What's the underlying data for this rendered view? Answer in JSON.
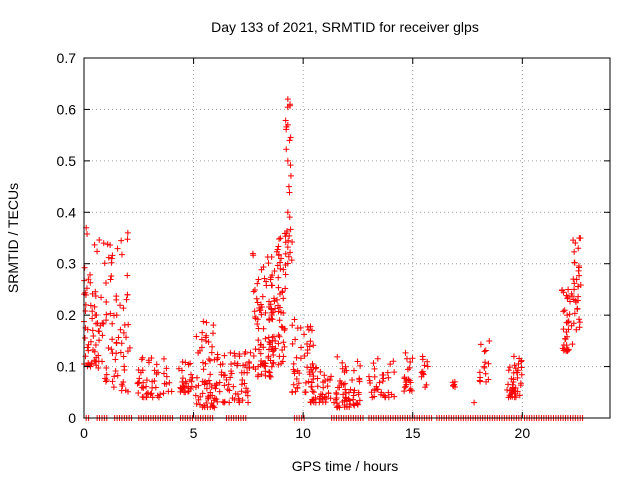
{
  "chart_data": {
    "type": "scatter",
    "title": "Day 133 of 2021, SRMTID for receiver glps",
    "xlabel": "GPS time / hours",
    "ylabel": "SRMTID / TECUs",
    "xlim": [
      0,
      24
    ],
    "ylim": [
      0,
      0.7
    ],
    "grid": true,
    "marker": "+",
    "color": "#ff0000",
    "x_ticks": [
      0,
      5,
      10,
      15,
      20
    ],
    "x_tick_labels": [
      "0",
      "5",
      "10",
      "15",
      "20"
    ],
    "y_ticks": [
      0,
      0.1,
      0.2,
      0.3,
      0.4,
      0.5,
      0.6,
      0.7
    ],
    "y_tick_labels": [
      "0",
      "0.1",
      "0.2",
      "0.3",
      "0.4",
      "0.5",
      "0.6",
      "0.7"
    ],
    "clusters": [
      {
        "x": [
          0.0,
          0.6
        ],
        "y": [
          0.1,
          0.37
        ],
        "n": 50
      },
      {
        "x": [
          0.6,
          1.5
        ],
        "y": [
          0.07,
          0.35
        ],
        "n": 45
      },
      {
        "x": [
          1.3,
          2.1
        ],
        "y": [
          0.05,
          0.36
        ],
        "n": 35
      },
      {
        "x": [
          2.4,
          4.0
        ],
        "y": [
          0.04,
          0.12
        ],
        "n": 50
      },
      {
        "x": [
          4.3,
          5.0
        ],
        "y": [
          0.05,
          0.11
        ],
        "n": 30
      },
      {
        "x": [
          5.1,
          6.0
        ],
        "y": [
          0.02,
          0.19
        ],
        "n": 60
      },
      {
        "x": [
          6.0,
          7.6
        ],
        "y": [
          0.03,
          0.13
        ],
        "n": 70
      },
      {
        "x": [
          7.7,
          8.6
        ],
        "y": [
          0.08,
          0.32
        ],
        "n": 80
      },
      {
        "x": [
          8.5,
          9.2
        ],
        "y": [
          0.1,
          0.36
        ],
        "n": 70
      },
      {
        "x": [
          9.2,
          9.5
        ],
        "y": [
          0.3,
          0.62
        ],
        "n": 25
      },
      {
        "x": [
          9.5,
          10.5
        ],
        "y": [
          0.05,
          0.2
        ],
        "n": 50
      },
      {
        "x": [
          10.3,
          11.3
        ],
        "y": [
          0.03,
          0.1
        ],
        "n": 40
      },
      {
        "x": [
          11.4,
          12.6
        ],
        "y": [
          0.02,
          0.12
        ],
        "n": 60
      },
      {
        "x": [
          13.0,
          14.2
        ],
        "y": [
          0.04,
          0.12
        ],
        "n": 35
      },
      {
        "x": [
          14.6,
          15.0
        ],
        "y": [
          0.05,
          0.13
        ],
        "n": 20
      },
      {
        "x": [
          15.4,
          15.7
        ],
        "y": [
          0.06,
          0.12
        ],
        "n": 12
      },
      {
        "x": [
          16.8,
          17.0
        ],
        "y": [
          0.06,
          0.08
        ],
        "n": 6
      },
      {
        "x": [
          18.0,
          18.5
        ],
        "y": [
          0.07,
          0.15
        ],
        "n": 15
      },
      {
        "x": [
          19.3,
          20.0
        ],
        "y": [
          0.04,
          0.12
        ],
        "n": 45
      },
      {
        "x": [
          21.8,
          22.3
        ],
        "y": [
          0.13,
          0.25
        ],
        "n": 35
      },
      {
        "x": [
          22.3,
          22.7
        ],
        "y": [
          0.17,
          0.35
        ],
        "n": 30
      }
    ],
    "extra_points": [
      {
        "x": 0.1,
        "y": 0.37
      },
      {
        "x": 9.3,
        "y": 0.62
      },
      {
        "x": 9.4,
        "y": 0.61
      },
      {
        "x": 9.3,
        "y": 0.57
      },
      {
        "x": 9.3,
        "y": 0.5
      },
      {
        "x": 9.35,
        "y": 0.45
      },
      {
        "x": 9.3,
        "y": 0.4
      },
      {
        "x": 2.0,
        "y": 0.36
      },
      {
        "x": 0.9,
        "y": 0.34
      },
      {
        "x": 17.8,
        "y": 0.03
      },
      {
        "x": 22.6,
        "y": 0.35
      },
      {
        "x": 22.55,
        "y": 0.33
      }
    ],
    "zero_segments": [
      [
        0.1,
        0.3
      ],
      [
        0.6,
        1.1
      ],
      [
        1.4,
        2.2
      ],
      [
        2.5,
        4.1
      ],
      [
        4.4,
        5.0
      ],
      [
        5.1,
        5.9
      ],
      [
        6.5,
        7.4
      ],
      [
        9.6,
        10.1
      ],
      [
        11.3,
        12.8
      ],
      [
        13.0,
        15.9
      ],
      [
        16.1,
        20.0
      ],
      [
        20.1,
        22.1
      ],
      [
        22.2,
        22.8
      ]
    ]
  }
}
